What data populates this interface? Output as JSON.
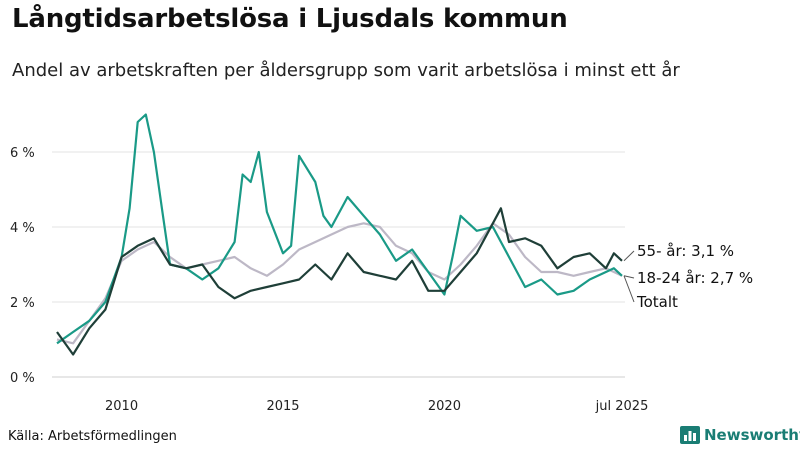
{
  "title": "Långtidsarbetslösa i Ljusdals kommun",
  "subtitle": "Andel av arbetskraften per åldersgrupp som varit arbetslösa i minst ett år",
  "source": "Källa: Arbetsförmedlingen",
  "brand": "Newsworthy",
  "colors": {
    "age_18_24": "#1a9a87",
    "age_55": "#1f3f38",
    "total": "#bdb8c6",
    "grid": "#e3e3e3"
  },
  "chart_data": {
    "type": "line",
    "x_unit": "year",
    "xlim": [
      2008.0,
      2025.5
    ],
    "ylim": [
      0,
      7
    ],
    "y_ticks": [
      {
        "value": 0,
        "label": "0 %"
      },
      {
        "value": 2,
        "label": "2 %"
      },
      {
        "value": 4,
        "label": "4 %"
      },
      {
        "value": 6,
        "label": "6 %"
      }
    ],
    "x_ticks": [
      {
        "value": 2010,
        "label": "2010"
      },
      {
        "value": 2015,
        "label": "2015"
      },
      {
        "value": 2020,
        "label": "2020"
      },
      {
        "value": 2025.5,
        "label": "jul 2025"
      }
    ],
    "grid": true,
    "series": [
      {
        "key": "age_18_24",
        "name": "18-24 år",
        "end_label": "18-24 år: 2,7 %",
        "x": [
          2008.0,
          2008.5,
          2009.0,
          2009.5,
          2010.0,
          2010.25,
          2010.5,
          2010.75,
          2011.0,
          2011.25,
          2011.5,
          2012.0,
          2012.5,
          2013.0,
          2013.5,
          2013.75,
          2014.0,
          2014.25,
          2014.5,
          2015.0,
          2015.25,
          2015.5,
          2016.0,
          2016.25,
          2016.5,
          2017.0,
          2017.5,
          2018.0,
          2018.5,
          2019.0,
          2019.5,
          2020.0,
          2020.25,
          2020.5,
          2021.0,
          2021.5,
          2022.0,
          2022.5,
          2023.0,
          2023.5,
          2024.0,
          2024.5,
          2025.0,
          2025.25,
          2025.5
        ],
        "y": [
          0.9,
          1.2,
          1.5,
          2.0,
          3.2,
          4.5,
          6.8,
          7.0,
          6.0,
          4.5,
          3.0,
          2.9,
          2.6,
          2.9,
          3.6,
          5.4,
          5.2,
          6.0,
          4.4,
          3.3,
          3.5,
          5.9,
          5.2,
          4.3,
          4.0,
          4.8,
          4.3,
          3.8,
          3.1,
          3.4,
          2.8,
          2.2,
          3.2,
          4.3,
          3.9,
          4.0,
          3.2,
          2.4,
          2.6,
          2.2,
          2.3,
          2.6,
          2.8,
          2.9,
          2.7
        ]
      },
      {
        "key": "age_55",
        "name": "55- år",
        "end_label": "55- år: 3,1 %",
        "x": [
          2008.0,
          2008.5,
          2009.0,
          2009.5,
          2010.0,
          2010.5,
          2011.0,
          2011.5,
          2012.0,
          2012.5,
          2013.0,
          2013.5,
          2014.0,
          2014.5,
          2015.0,
          2015.5,
          2016.0,
          2016.5,
          2017.0,
          2017.5,
          2018.0,
          2018.5,
          2019.0,
          2019.5,
          2020.0,
          2020.5,
          2021.0,
          2021.5,
          2021.75,
          2022.0,
          2022.5,
          2023.0,
          2023.5,
          2024.0,
          2024.5,
          2025.0,
          2025.25,
          2025.5
        ],
        "y": [
          1.2,
          0.6,
          1.3,
          1.8,
          3.2,
          3.5,
          3.7,
          3.0,
          2.9,
          3.0,
          2.4,
          2.1,
          2.3,
          2.4,
          2.5,
          2.6,
          3.0,
          2.6,
          3.3,
          2.8,
          2.7,
          2.6,
          3.1,
          2.3,
          2.3,
          2.8,
          3.3,
          4.1,
          4.5,
          3.6,
          3.7,
          3.5,
          2.9,
          3.2,
          3.3,
          2.9,
          3.3,
          3.1
        ]
      },
      {
        "key": "total",
        "name": "Totalt",
        "end_label": "Totalt",
        "x": [
          2008.0,
          2008.5,
          2009.0,
          2009.5,
          2010.0,
          2010.5,
          2011.0,
          2011.5,
          2012.0,
          2012.5,
          2013.0,
          2013.5,
          2014.0,
          2014.5,
          2015.0,
          2015.5,
          2016.0,
          2016.5,
          2017.0,
          2017.5,
          2018.0,
          2018.5,
          2019.0,
          2019.5,
          2020.0,
          2020.5,
          2021.0,
          2021.5,
          2022.0,
          2022.5,
          2023.0,
          2023.5,
          2024.0,
          2024.5,
          2025.0,
          2025.25,
          2025.5
        ],
        "y": [
          1.0,
          0.9,
          1.5,
          2.1,
          3.1,
          3.4,
          3.6,
          3.2,
          2.9,
          3.0,
          3.1,
          3.2,
          2.9,
          2.7,
          3.0,
          3.4,
          3.6,
          3.8,
          4.0,
          4.1,
          4.0,
          3.5,
          3.3,
          2.8,
          2.6,
          3.0,
          3.5,
          4.1,
          3.8,
          3.2,
          2.8,
          2.8,
          2.7,
          2.8,
          2.9,
          2.8,
          2.7
        ]
      }
    ]
  }
}
